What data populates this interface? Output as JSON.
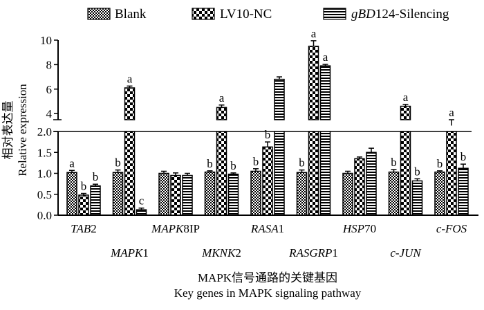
{
  "chart_data": {
    "type": "bar",
    "xlabel_cn": "MAPK信号通路的关键基因",
    "xlabel_en": "Key genes in MAPK signaling pathway",
    "ylabel_cn": "相对表达量",
    "ylabel_en": "Relative expression",
    "y_axis_break": {
      "lower": [
        0,
        2.0
      ],
      "upper": [
        3.5,
        10
      ]
    },
    "y_ticks_lower": [
      "0.0",
      "0.5",
      "1.0",
      "1.5",
      "2.0"
    ],
    "y_ticks_upper": [
      "4",
      "6",
      "8",
      "10"
    ],
    "legend_placement": "top",
    "categories": [
      {
        "label": "TAB2",
        "italic_part": "TAB",
        "plain_part": "2",
        "row": 1
      },
      {
        "label": "MAPK1",
        "italic_part": "MAPK",
        "plain_part": "1",
        "row": 2
      },
      {
        "label": "MAPK8IP",
        "italic_part": "MAPK",
        "plain_part": "8IP",
        "row": 1
      },
      {
        "label": "MKNK2",
        "italic_part": "MKNK",
        "plain_part": "2",
        "row": 2
      },
      {
        "label": "RASA1",
        "italic_part": "RASA",
        "plain_part": "1",
        "row": 1
      },
      {
        "label": "RASGRP1",
        "italic_part": "RASGRP",
        "plain_part": "1",
        "row": 2
      },
      {
        "label": "HSP70",
        "italic_part": "HSP",
        "plain_part": "70",
        "row": 1
      },
      {
        "label": "c-JUN",
        "italic_part": "c-JUN",
        "plain_part": "",
        "row": 2
      },
      {
        "label": "c-FOS",
        "italic_part": "c-FOS",
        "plain_part": "",
        "row": 1
      }
    ],
    "series": [
      {
        "name": "Blank",
        "name_parts": {
          "italic": "",
          "plain": "Blank"
        },
        "pattern": "checker",
        "values": [
          1.02,
          1.02,
          1.0,
          1.03,
          1.05,
          1.02,
          1.0,
          1.03,
          1.03
        ],
        "errors": [
          0.05,
          0.06,
          0.05,
          0.03,
          0.06,
          0.06,
          0.05,
          0.06,
          0.03
        ],
        "sig": [
          "a",
          "b",
          "",
          "b",
          "b",
          "b",
          "",
          "b",
          "b"
        ]
      },
      {
        "name": "LV10-NC",
        "name_parts": {
          "italic": "",
          "plain": "LV10-NC"
        },
        "pattern": "dots",
        "values": [
          0.48,
          6.1,
          0.95,
          4.5,
          1.63,
          9.5,
          1.35,
          4.6,
          3.4
        ],
        "errors": [
          0.04,
          0.15,
          0.06,
          0.2,
          0.12,
          0.45,
          0.04,
          0.15,
          0.1
        ],
        "sig": [
          "b",
          "a",
          "",
          "a",
          "b",
          "a",
          "",
          "a",
          "a"
        ]
      },
      {
        "name": "gBD124-Silencing",
        "name_parts": {
          "italic": "gBD",
          "plain": "124-Silencing"
        },
        "pattern": "hstripes",
        "values": [
          0.7,
          0.13,
          0.95,
          0.98,
          6.8,
          7.9,
          1.5,
          0.82,
          1.12
        ],
        "errors": [
          0.04,
          0.04,
          0.05,
          0.03,
          0.2,
          0.12,
          0.1,
          0.05,
          0.1
        ],
        "sig": [
          "b",
          "c",
          "",
          "b",
          "",
          "a",
          "",
          "b",
          "b"
        ]
      }
    ]
  }
}
